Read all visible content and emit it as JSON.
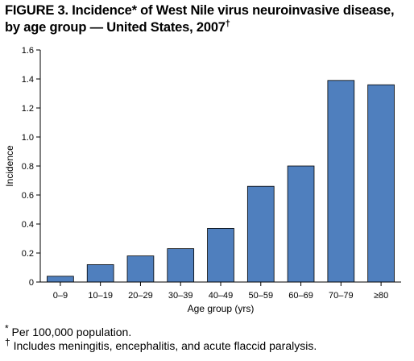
{
  "title": {
    "main": "FIGURE 3. Incidence* of West Nile virus neuroinvasive disease, by age group — United States, 2007",
    "dagger": "†"
  },
  "footnotes": [
    {
      "mark": "*",
      "text": " Per 100,000 population."
    },
    {
      "mark": "†",
      "text": " Includes meningitis, encephalitis, and acute flaccid paralysis."
    }
  ],
  "colors": {
    "bar": "#4f7fbe",
    "bar_edge": "#000000",
    "axis": "#000000"
  },
  "chart_data": {
    "type": "bar",
    "categories": [
      "0–9",
      "10–19",
      "20–29",
      "30–39",
      "40–49",
      "50–59",
      "60–69",
      "70–79",
      "≥80"
    ],
    "values": [
      0.04,
      0.12,
      0.18,
      0.23,
      0.37,
      0.66,
      0.8,
      1.39,
      1.36
    ],
    "xlabel": "Age group (yrs)",
    "ylabel": "Incidence",
    "ylim": [
      0,
      1.6
    ],
    "yticks": [
      "0",
      "0.2",
      "0.4",
      "0.6",
      "0.8",
      "1.0",
      "1.2",
      "1.4",
      "1.6"
    ],
    "grid": false,
    "legend": "none"
  }
}
